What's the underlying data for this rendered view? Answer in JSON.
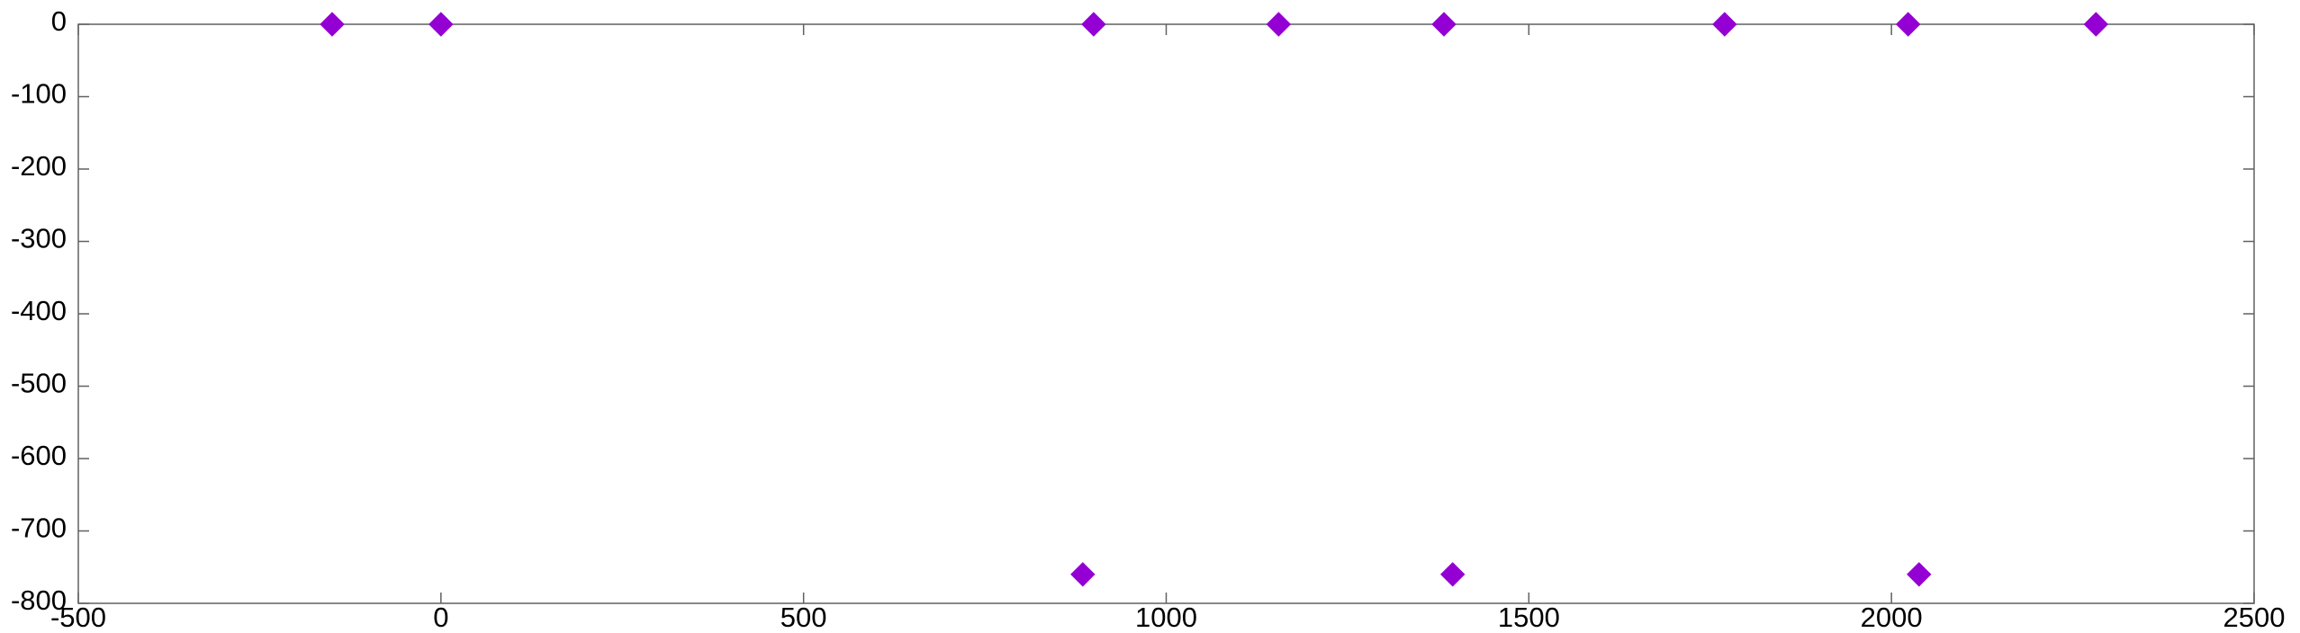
{
  "chart_data": {
    "type": "scatter",
    "title": "",
    "xlabel": "",
    "ylabel": "",
    "xlim": [
      -500,
      2500
    ],
    "ylim": [
      -800,
      0
    ],
    "x_ticks": [
      -500,
      0,
      500,
      1000,
      1500,
      2000,
      2500
    ],
    "y_ticks": [
      0,
      -100,
      -200,
      -300,
      -400,
      -500,
      -600,
      -700,
      -800
    ],
    "x_tick_labels": [
      "-500",
      "0",
      "500",
      "1000",
      "1500",
      "2000",
      "2500"
    ],
    "y_tick_labels": [
      "0",
      "-100",
      "-200",
      "-300",
      "-400",
      "-500",
      "-600",
      "-700",
      "-800"
    ],
    "grid": false,
    "marker": "diamond",
    "series": [
      {
        "color": "#9400d3",
        "points": [
          {
            "x": -150,
            "y": 0
          },
          {
            "x": 0,
            "y": 0
          },
          {
            "x": 900,
            "y": 0
          },
          {
            "x": 1155,
            "y": 0
          },
          {
            "x": 1383,
            "y": 0
          },
          {
            "x": 1770,
            "y": 0
          },
          {
            "x": 2023,
            "y": 0
          },
          {
            "x": 2282,
            "y": 0
          },
          {
            "x": 885,
            "y": -760
          },
          {
            "x": 1395,
            "y": -760
          },
          {
            "x": 2038,
            "y": -760
          }
        ]
      }
    ]
  }
}
